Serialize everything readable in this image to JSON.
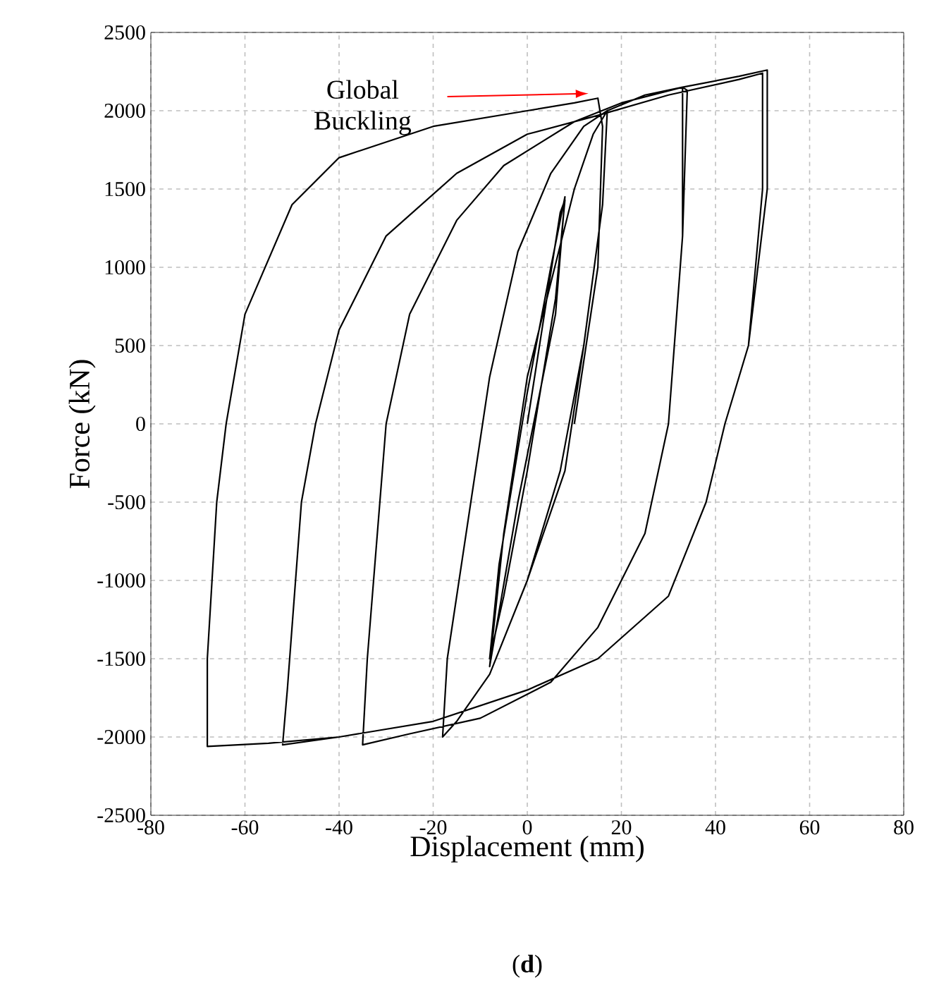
{
  "chart_data": {
    "type": "line",
    "xlabel": "Displacement (mm)",
    "ylabel": "Force (kN)",
    "xlim": [
      -80,
      80
    ],
    "ylim": [
      -2500,
      2500
    ],
    "xticks": [
      -80,
      -60,
      -40,
      -20,
      0,
      20,
      40,
      60,
      80
    ],
    "yticks": [
      -2500,
      -2000,
      -1500,
      -1000,
      -500,
      0,
      500,
      1000,
      1500,
      2000,
      2500
    ],
    "grid": true,
    "series": [
      {
        "color": "#000000",
        "x": [
          0,
          7,
          8,
          6,
          0,
          -5,
          -8,
          -6,
          0,
          5,
          8,
          6,
          -2,
          -8,
          -5,
          0,
          10,
          14,
          17,
          16,
          12,
          8,
          0,
          -8,
          -15,
          -18,
          -17,
          -12,
          -8,
          -2,
          5,
          12,
          17,
          16,
          12,
          7,
          0,
          -8,
          -15,
          -18,
          -17,
          -12,
          -8,
          -2,
          5,
          12,
          17,
          25,
          33,
          34,
          33,
          30,
          25,
          15,
          5,
          -10,
          -25,
          -35,
          -34,
          -30,
          -25,
          -15,
          -5,
          10,
          20,
          33,
          33,
          30,
          25,
          15,
          5,
          -10,
          -25,
          -35,
          -34,
          -30,
          -25,
          -15,
          -5,
          10,
          20,
          33,
          45,
          51,
          51,
          47,
          42,
          38,
          30,
          15,
          0,
          -20,
          -40,
          -52,
          -51,
          -48,
          -45,
          -40,
          -30,
          -15,
          0,
          15,
          30,
          45,
          50,
          50,
          47,
          42,
          38,
          30,
          15,
          0,
          -20,
          -40,
          -55,
          -68,
          -68,
          -66,
          -64,
          -60,
          -50,
          -40,
          -20,
          0,
          10,
          15,
          16,
          15,
          10
        ],
        "values": [
          0,
          1350,
          1430,
          800,
          -300,
          -1100,
          -1500,
          -900,
          200,
          1000,
          1450,
          700,
          -500,
          -1550,
          -700,
          300,
          1500,
          1850,
          2000,
          1400,
          500,
          -300,
          -1000,
          -1600,
          -1900,
          -2000,
          -1500,
          -500,
          300,
          1100,
          1600,
          1900,
          2000,
          1400,
          500,
          -300,
          -1000,
          -1600,
          -1900,
          -2000,
          -1500,
          -500,
          300,
          1100,
          1600,
          1900,
          2000,
          2100,
          2150,
          2130,
          1200,
          0,
          -700,
          -1300,
          -1650,
          -1880,
          -1980,
          -2050,
          -1500,
          0,
          700,
          1300,
          1650,
          1930,
          2050,
          2150,
          1200,
          0,
          -700,
          -1300,
          -1650,
          -1880,
          -1980,
          -2050,
          -1500,
          0,
          700,
          1300,
          1650,
          1930,
          2050,
          2150,
          2220,
          2260,
          1500,
          500,
          0,
          -500,
          -1100,
          -1500,
          -1700,
          -1900,
          -2000,
          -2050,
          -1700,
          -500,
          0,
          600,
          1200,
          1600,
          1850,
          1970,
          2100,
          2200,
          2240,
          1500,
          500,
          0,
          -500,
          -1100,
          -1500,
          -1700,
          -1900,
          -2000,
          -2040,
          -2060,
          -1500,
          -500,
          0,
          700,
          1400,
          1700,
          1900,
          2000,
          2050,
          2080,
          1900,
          1000,
          0
        ]
      }
    ],
    "annotations": [
      "Global Buckling",
      "(**d**)"
    ]
  }
}
